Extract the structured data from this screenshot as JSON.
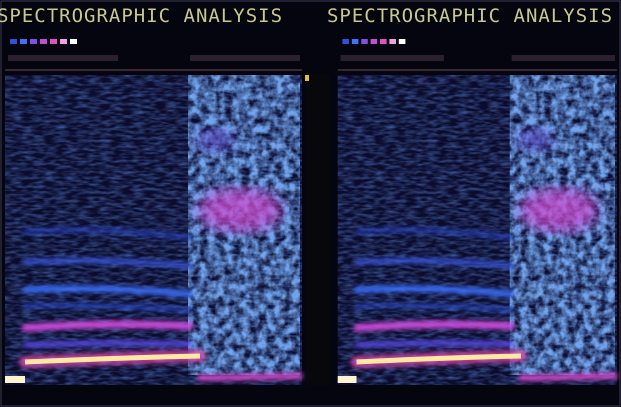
{
  "panels": [
    {
      "title": "SPECTROGRAPHIC ANALYSIS"
    },
    {
      "title": "SPECTROGRAPHIC ANALYSIS"
    }
  ]
}
